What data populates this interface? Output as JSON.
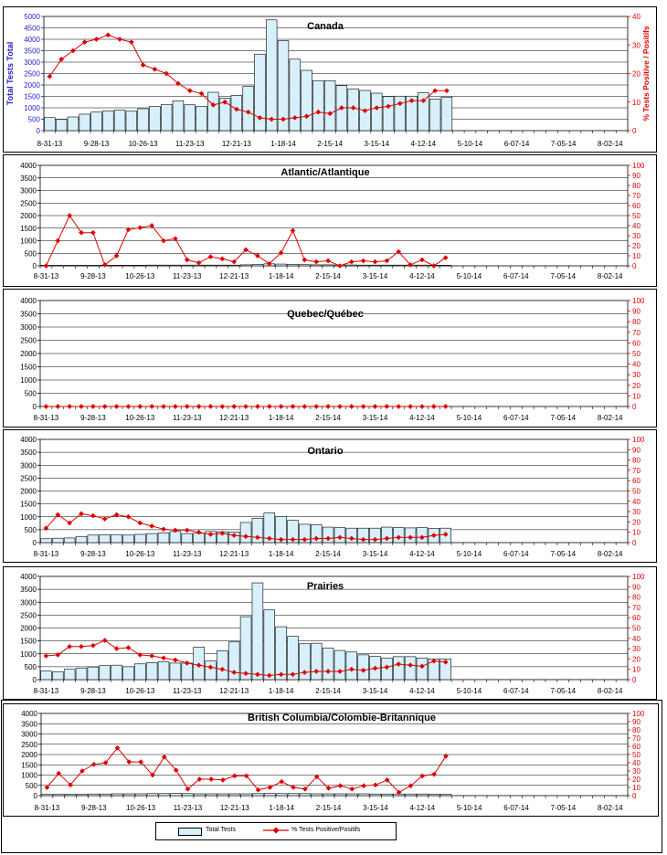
{
  "x_tick_labels": [
    "8-31-13",
    "9-28-13",
    "10-26-13",
    "11-23-13",
    "12-21-13",
    "1-18-14",
    "2-15-14",
    "3-15-14",
    "4-12-14",
    "5-10-14",
    "6-07-14",
    "7-05-14",
    "8-02-14"
  ],
  "legend": {
    "bars_label": "Total Tests",
    "line_label": "% Tests Positive/Positifs"
  },
  "colors": {
    "bar_fill": "#d8f0fc",
    "bar_stroke": "#000000",
    "line": "#e00000",
    "left_axis_canada": "#1e1ec8"
  },
  "chart_data": [
    {
      "type": "bar+line",
      "title": "Canada",
      "ylabel": "Total Tests Total",
      "y2label": "% Tests Positive / Positifs",
      "ylim": [
        0,
        5000
      ],
      "y_ticks": [
        "0",
        "500",
        "1000",
        "1500",
        "2000",
        "2500",
        "3000",
        "3500",
        "4000",
        "4500",
        "5000"
      ],
      "y2lim": [
        0,
        40
      ],
      "y2_ticks": [
        "0",
        "10",
        "20",
        "30",
        "40"
      ],
      "tests": [
        570,
        490,
        600,
        720,
        810,
        870,
        900,
        850,
        960,
        1060,
        1150,
        1300,
        1130,
        1060,
        1680,
        1420,
        1540,
        1940,
        3350,
        4850,
        3940,
        3130,
        2640,
        2190,
        2190,
        1970,
        1830,
        1760,
        1640,
        1490,
        1510,
        1510,
        1660,
        1380,
        1470
      ],
      "percent_positive": [
        19,
        25,
        28,
        31,
        32,
        33.5,
        32,
        31,
        23,
        21.5,
        20,
        16.5,
        14,
        13,
        9,
        10,
        7.5,
        6.5,
        4.5,
        4,
        4,
        4.5,
        5,
        6.5,
        6,
        8,
        8,
        7,
        8,
        8.5,
        9.5,
        10.5,
        10.5,
        14,
        14
      ]
    },
    {
      "type": "bar+line",
      "title": "Atlantic/Atlantique",
      "ylim": [
        0,
        4000
      ],
      "y_ticks": [
        "0",
        "500",
        "1000",
        "1500",
        "2000",
        "2500",
        "3000",
        "3500",
        "4000"
      ],
      "y2lim": [
        0,
        100
      ],
      "y2_ticks": [
        "0",
        "10",
        "20",
        "30",
        "40",
        "50",
        "60",
        "70",
        "80",
        "90",
        "100"
      ],
      "tests": [
        20,
        20,
        20,
        20,
        20,
        25,
        25,
        25,
        25,
        30,
        30,
        30,
        30,
        30,
        30,
        30,
        30,
        40,
        60,
        80,
        70,
        60,
        50,
        40,
        40,
        35,
        35,
        30,
        30,
        30,
        30,
        30,
        30,
        25,
        25
      ],
      "percent_positive": [
        0,
        25,
        50,
        33,
        33,
        1,
        10,
        36,
        38,
        40,
        25,
        27,
        6,
        3,
        9,
        7,
        4,
        16,
        10,
        2,
        13,
        35,
        6,
        4,
        5,
        0,
        4,
        5,
        4,
        5,
        14,
        1,
        6,
        0,
        8
      ]
    },
    {
      "type": "bar+line",
      "title": "Quebec/Québec",
      "ylim": [
        0,
        4000
      ],
      "y_ticks": [
        "0",
        "500",
        "1000",
        "1500",
        "2000",
        "2500",
        "3000",
        "3500",
        "4000"
      ],
      "y2lim": [
        0,
        100
      ],
      "y2_ticks": [
        "0",
        "10",
        "20",
        "30",
        "40",
        "50",
        "60",
        "70",
        "80",
        "90",
        "100"
      ],
      "tests": [
        0,
        0,
        0,
        0,
        0,
        0,
        0,
        0,
        0,
        0,
        0,
        0,
        0,
        0,
        0,
        0,
        0,
        0,
        0,
        0,
        0,
        0,
        0,
        0,
        0,
        0,
        0,
        0,
        0,
        0,
        0,
        0,
        0,
        0,
        0
      ],
      "percent_positive": [
        0,
        0,
        0,
        0,
        0,
        0,
        0,
        0,
        0,
        0,
        0,
        0,
        0,
        0,
        0,
        0,
        0,
        0,
        0,
        0,
        0,
        0,
        0,
        0,
        0,
        0,
        0,
        0,
        0,
        0,
        0,
        0,
        0,
        0,
        0
      ]
    },
    {
      "type": "bar+line",
      "title": "Ontario",
      "ylim": [
        0,
        4000
      ],
      "y_ticks": [
        "0",
        "500",
        "1000",
        "1500",
        "2000",
        "2500",
        "3000",
        "3500",
        "4000"
      ],
      "y2lim": [
        0,
        100
      ],
      "y2_ticks": [
        "0",
        "10",
        "20",
        "30",
        "40",
        "50",
        "60",
        "70",
        "80",
        "90",
        "100"
      ],
      "tests": [
        150,
        170,
        180,
        240,
        290,
        300,
        310,
        290,
        320,
        350,
        380,
        430,
        350,
        360,
        430,
        420,
        410,
        780,
        940,
        1150,
        1010,
        860,
        710,
        700,
        600,
        580,
        560,
        560,
        560,
        600,
        580,
        570,
        580,
        550,
        560
      ],
      "percent_positive": [
        14,
        27,
        19,
        28,
        26,
        23,
        27,
        25,
        19,
        16,
        13,
        12,
        12,
        10,
        8,
        9,
        7,
        6,
        5,
        4,
        3,
        3,
        3,
        4,
        4,
        5,
        4,
        3,
        3,
        4,
        5,
        5,
        5,
        7,
        8
      ]
    },
    {
      "type": "bar+line",
      "title": "Prairies",
      "ylim": [
        0,
        4000
      ],
      "y_ticks": [
        "0",
        "500",
        "1000",
        "1500",
        "2000",
        "2500",
        "3000",
        "3500",
        "4000"
      ],
      "y2lim": [
        0,
        100
      ],
      "y2_ticks": [
        "0",
        "10",
        "20",
        "30",
        "40",
        "50",
        "60",
        "70",
        "80",
        "90",
        "100"
      ],
      "tests": [
        330,
        300,
        400,
        440,
        490,
        540,
        560,
        500,
        610,
        660,
        700,
        640,
        640,
        1260,
        720,
        1120,
        1460,
        2440,
        3750,
        2700,
        2050,
        1680,
        1390,
        1410,
        1220,
        1130,
        1070,
        960,
        900,
        840,
        890,
        890,
        840,
        800,
        800
      ],
      "percent_positive": [
        23,
        24,
        32,
        32,
        33,
        38,
        30,
        31,
        24,
        23,
        21,
        19,
        16,
        14,
        12,
        10,
        7,
        6,
        5,
        4,
        5,
        5,
        7,
        8,
        8,
        8,
        10,
        9,
        11,
        12,
        15,
        14,
        13,
        18,
        17
      ]
    },
    {
      "type": "bar+line",
      "title": "British Columbia/Colombie-Britannique",
      "ylim": [
        0,
        4000
      ],
      "y_ticks": [
        "0",
        "500",
        "1000",
        "1500",
        "2000",
        "2500",
        "3000",
        "3500",
        "4000"
      ],
      "y2lim": [
        0,
        100
      ],
      "y2_ticks": [
        "0",
        "10",
        "20",
        "30",
        "40",
        "50",
        "60",
        "70",
        "80",
        "90",
        "100"
      ],
      "tests": [
        60,
        60,
        70,
        70,
        80,
        80,
        90,
        90,
        90,
        100,
        100,
        110,
        100,
        90,
        90,
        90,
        90,
        90,
        100,
        110,
        100,
        100,
        100,
        90,
        90,
        90,
        90,
        90,
        80,
        80,
        80,
        80,
        80,
        70,
        70
      ],
      "percent_positive": [
        10,
        27,
        13,
        30,
        38,
        40,
        58,
        41,
        41,
        25,
        47,
        31,
        8,
        20,
        20,
        19,
        24,
        24,
        7,
        10,
        17,
        10,
        8,
        23,
        9,
        12,
        8,
        12,
        13,
        19,
        4,
        12,
        24,
        26,
        48
      ]
    }
  ]
}
